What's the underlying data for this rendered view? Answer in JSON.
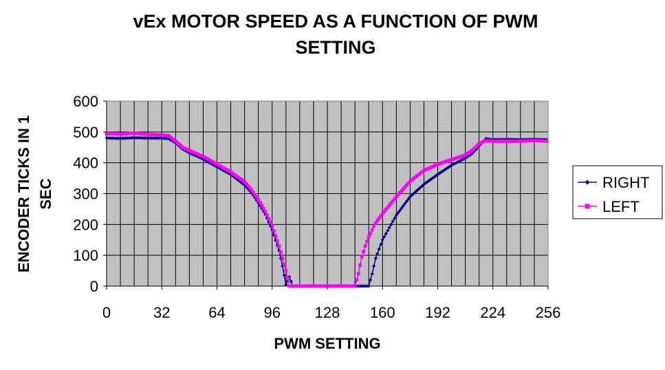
{
  "chart_data": {
    "type": "line",
    "title_line1": "vEx MOTOR SPEED AS A FUNCTION OF PWM",
    "title_line2": "SETTING",
    "xlabel": "PWM SETTING",
    "ylabel_line1": "ENCODER TICKS IN 1",
    "ylabel_line2": "SEC",
    "xlim": [
      0,
      256
    ],
    "ylim": [
      0,
      600
    ],
    "x_ticks": [
      "0",
      "32",
      "64",
      "96",
      "128",
      "160",
      "192",
      "224",
      "256"
    ],
    "y_ticks": [
      "0",
      "100",
      "200",
      "300",
      "400",
      "500",
      "600"
    ],
    "grid": true,
    "legend_position": "right",
    "plot_background": "#c0c0c0",
    "series": [
      {
        "name": "RIGHT",
        "color": "#000080",
        "marker": "diamond",
        "x": [
          0,
          8,
          16,
          24,
          32,
          36,
          40,
          44,
          48,
          56,
          64,
          72,
          80,
          84,
          88,
          92,
          96,
          100,
          102,
          104,
          106,
          108,
          112,
          120,
          128,
          136,
          144,
          146,
          148,
          150,
          152,
          154,
          156,
          160,
          168,
          176,
          184,
          192,
          200,
          208,
          212,
          216,
          220,
          224,
          232,
          240,
          248,
          256
        ],
        "y": [
          480,
          479,
          481,
          480,
          480,
          478,
          465,
          445,
          432,
          412,
          387,
          362,
          328,
          303,
          270,
          233,
          182,
          115,
          65,
          5,
          30,
          0,
          0,
          0,
          0,
          0,
          0,
          0,
          0,
          0,
          0,
          40,
          90,
          150,
          230,
          290,
          330,
          362,
          392,
          415,
          430,
          455,
          478,
          475,
          476,
          475,
          476,
          475
        ]
      },
      {
        "name": "LEFT",
        "color": "#ff00ff",
        "marker": "square",
        "x": [
          0,
          8,
          16,
          24,
          32,
          36,
          40,
          44,
          48,
          56,
          64,
          72,
          80,
          84,
          88,
          92,
          96,
          100,
          104,
          106,
          108,
          112,
          120,
          128,
          136,
          144,
          146,
          148,
          150,
          152,
          156,
          160,
          168,
          176,
          184,
          192,
          200,
          208,
          212,
          216,
          220,
          224,
          232,
          240,
          248,
          256
        ],
        "y": [
          495,
          493,
          496,
          492,
          490,
          488,
          470,
          450,
          440,
          420,
          395,
          370,
          338,
          312,
          280,
          242,
          195,
          130,
          50,
          0,
          0,
          0,
          0,
          0,
          0,
          0,
          40,
          95,
          130,
          160,
          205,
          235,
          290,
          340,
          375,
          395,
          410,
          425,
          440,
          462,
          472,
          470,
          470,
          470,
          472,
          470
        ]
      }
    ]
  }
}
